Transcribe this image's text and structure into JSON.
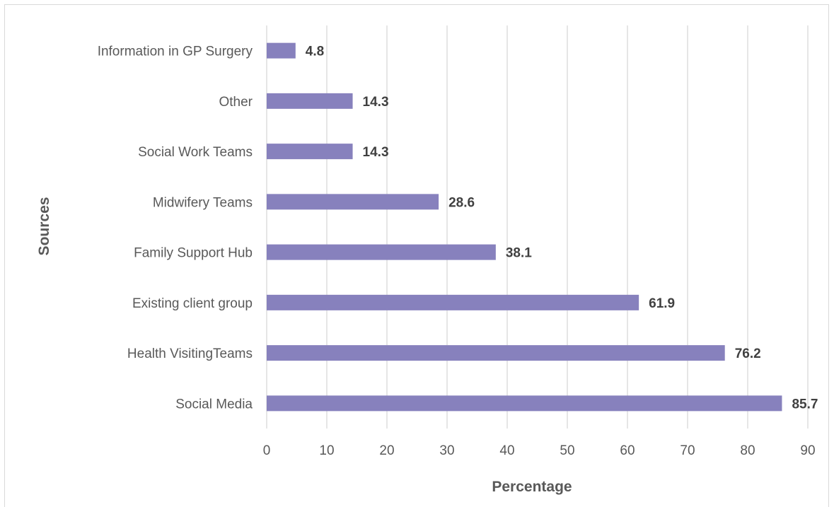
{
  "chart_data": {
    "type": "bar",
    "orientation": "horizontal",
    "categories": [
      "Information in GP Surgery",
      "Other ",
      "Social Work Teams",
      "Midwifery Teams",
      "Family Support Hub",
      "Existing client group",
      "Health VisitingTeams",
      "Social Media "
    ],
    "values": [
      4.8,
      14.3,
      14.3,
      28.6,
      38.1,
      61.9,
      76.2,
      85.7
    ],
    "data_labels": [
      "4.8",
      "14.3",
      "14.3",
      "28.6",
      "38.1",
      "61.9",
      "76.2",
      "85.7"
    ],
    "xlabel": "Percentage",
    "ylabel": "Sources",
    "xlim": [
      0,
      90
    ],
    "xticks": [
      0,
      10,
      20,
      30,
      40,
      50,
      60,
      70,
      80,
      90
    ],
    "grid": "vertical",
    "legend": "none",
    "bar_color": "#8781bd"
  }
}
